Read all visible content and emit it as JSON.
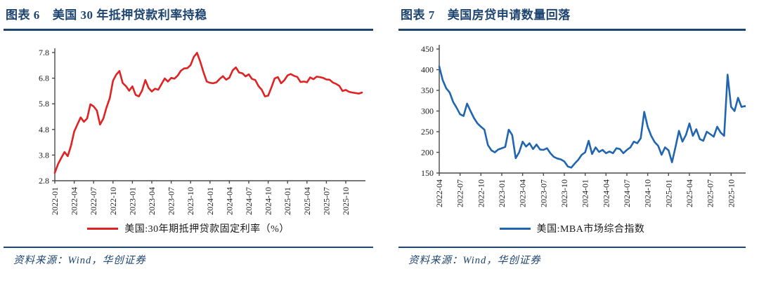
{
  "colors": {
    "navy": "#1e4470",
    "red_line": "#e02222",
    "blue_line": "#2065b0",
    "axis": "#4a4a4a"
  },
  "figures": [
    {
      "label": "图表 6",
      "title": "美国 30 年抵押贷款利率持稳",
      "legend": "美国:30年期抵押贷款固定利率（%）",
      "source": "资料来源：Wind，华创证券"
    },
    {
      "label": "图表 7",
      "title": "美国房贷申请数量回落",
      "legend": "美国:MBA市场综合指数",
      "source": "资料来源：Wind，华创证券"
    }
  ],
  "chart_data": [
    {
      "type": "line",
      "title": "美国 30 年抵押贷款利率持稳",
      "xlabel": "",
      "ylabel": "",
      "ylim": [
        2.8,
        7.8
      ],
      "yticks": [
        2.8,
        3.8,
        4.8,
        5.8,
        6.8,
        7.8
      ],
      "ytick_labels": [
        "2.8",
        "3.8",
        "4.8",
        "5.8",
        "6.8",
        "7.8"
      ],
      "grid": false,
      "legend_position": "bottom",
      "x_unit": "half-month steps from 2022-01 to 2025-12",
      "x_tick_labels": [
        "2022-01",
        "2022-04",
        "2022-07",
        "2022-10",
        "2023-01",
        "2023-04",
        "2023-07",
        "2023-10",
        "2024-01",
        "2024-04",
        "2024-07",
        "2024-10",
        "2025-01",
        "2025-04",
        "2025-07",
        "2025-10"
      ],
      "x_tick_indices": [
        0,
        6,
        12,
        18,
        24,
        30,
        36,
        42,
        48,
        54,
        60,
        66,
        72,
        78,
        84,
        90
      ],
      "series": [
        {
          "name": "美国:30年期抵押贷款固定利率（%）",
          "color": "#e02222",
          "values": [
            3.11,
            3.45,
            3.69,
            3.92,
            3.76,
            4.16,
            4.72,
            5.0,
            5.27,
            5.1,
            5.23,
            5.78,
            5.7,
            5.54,
            4.99,
            5.22,
            5.66,
            6.02,
            6.7,
            6.94,
            7.08,
            6.61,
            6.49,
            6.31,
            6.48,
            6.15,
            6.09,
            6.32,
            6.73,
            6.42,
            6.28,
            6.39,
            6.35,
            6.57,
            6.79,
            6.67,
            6.81,
            6.78,
            6.9,
            7.09,
            7.18,
            7.19,
            7.31,
            7.63,
            7.79,
            7.44,
            7.03,
            6.67,
            6.62,
            6.6,
            6.64,
            6.77,
            6.88,
            6.74,
            6.82,
            7.1,
            7.22,
            7.02,
            6.99,
            6.87,
            6.95,
            6.77,
            6.73,
            6.49,
            6.35,
            6.09,
            6.12,
            6.44,
            6.79,
            6.84,
            6.6,
            6.72,
            6.91,
            6.96,
            6.89,
            6.85,
            6.65,
            6.67,
            6.64,
            6.83,
            6.76,
            6.86,
            6.84,
            6.81,
            6.75,
            6.74,
            6.63,
            6.58,
            6.5,
            6.3,
            6.34,
            6.27,
            6.24,
            6.22,
            6.2,
            6.24
          ]
        }
      ]
    },
    {
      "type": "line",
      "title": "美国房贷申请数量回落",
      "xlabel": "",
      "ylabel": "",
      "ylim": [
        150,
        450
      ],
      "yticks": [
        150,
        200,
        250,
        300,
        350,
        400,
        450
      ],
      "ytick_labels": [
        "150",
        "200",
        "250",
        "300",
        "350",
        "400",
        "450"
      ],
      "grid": false,
      "legend_position": "bottom",
      "x_unit": "half-month steps from 2022-04 to 2025-12",
      "x_tick_labels": [
        "2022-04",
        "2022-07",
        "2022-10",
        "2023-01",
        "2023-04",
        "2023-07",
        "2023-10",
        "2024-01",
        "2024-04",
        "2024-07",
        "2024-10",
        "2025-01",
        "2025-04",
        "2025-07",
        "2025-10"
      ],
      "x_tick_indices": [
        0,
        6,
        12,
        18,
        24,
        30,
        36,
        42,
        48,
        54,
        60,
        66,
        72,
        78,
        84
      ],
      "series": [
        {
          "name": "美国:MBA市场综合指数",
          "color": "#2065b0",
          "values": [
            408,
            375,
            355,
            345,
            322,
            308,
            292,
            288,
            318,
            300,
            283,
            270,
            262,
            255,
            218,
            205,
            200,
            207,
            210,
            213,
            255,
            242,
            186,
            200,
            226,
            214,
            222,
            208,
            219,
            207,
            206,
            210,
            198,
            189,
            185,
            183,
            178,
            166,
            163,
            173,
            182,
            194,
            200,
            228,
            196,
            212,
            201,
            206,
            198,
            202,
            198,
            210,
            208,
            198,
            206,
            212,
            226,
            222,
            234,
            298,
            262,
            240,
            225,
            216,
            194,
            212,
            205,
            176,
            213,
            252,
            226,
            242,
            270,
            240,
            256,
            232,
            228,
            250,
            244,
            238,
            262,
            248,
            240,
            388,
            310,
            300,
            332,
            310,
            312,
            308
          ]
        }
      ]
    }
  ]
}
